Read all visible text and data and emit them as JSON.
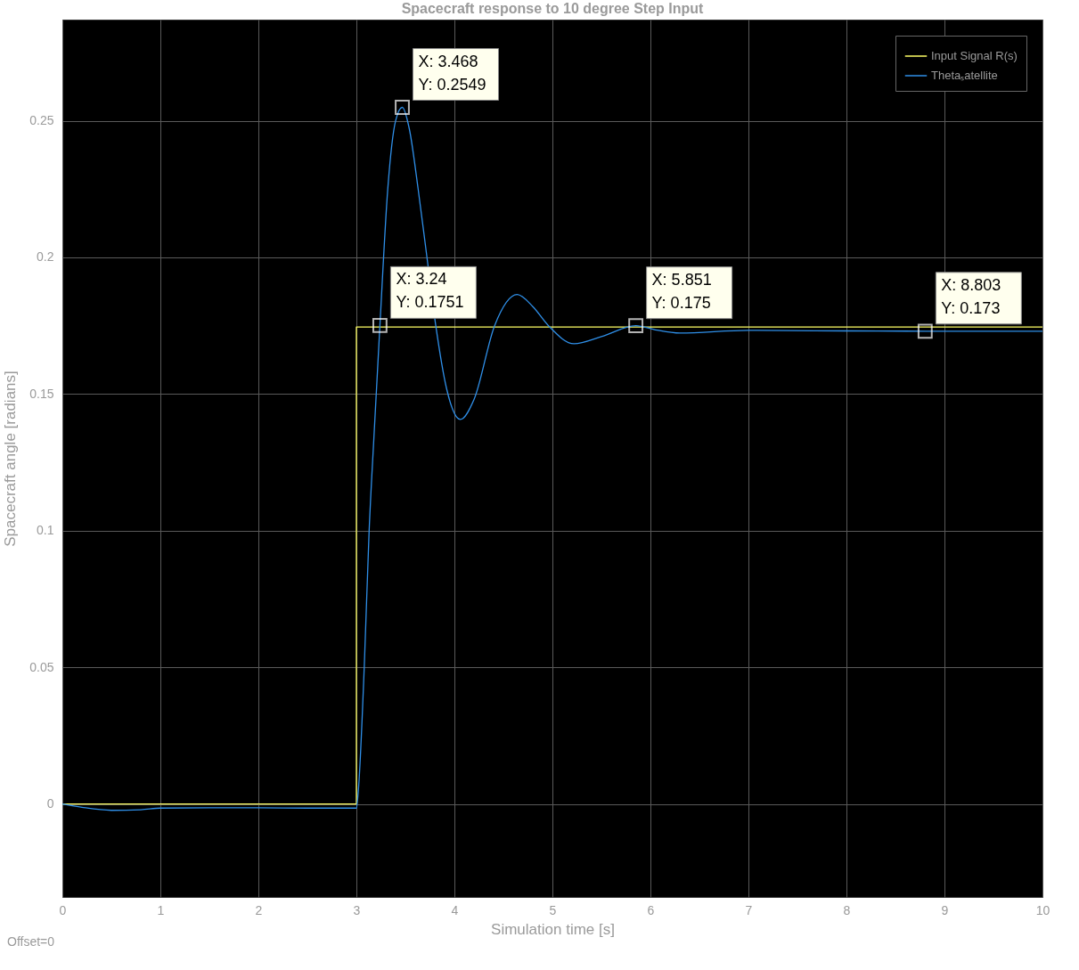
{
  "chart_data": {
    "type": "line",
    "title": "Spacecraft response to 10 degree Step Input",
    "xlabel": "Simulation time [s]",
    "ylabel": "Spacecraft angle [radians]",
    "xlim": [
      0,
      10
    ],
    "xticks": [
      0,
      1,
      2,
      3,
      4,
      5,
      6,
      7,
      8,
      9,
      10
    ],
    "ylim": [
      -0.034,
      0.287
    ],
    "yticks": [
      0,
      0.05,
      0.1,
      0.15,
      0.2,
      0.25
    ],
    "grid": true,
    "legend": "top right",
    "marker": "none",
    "line_style": "solid",
    "series": [
      {
        "name": "Input Signal R(s)",
        "type": "step",
        "color": "#ffff66",
        "x": [
          0,
          3,
          10
        ],
        "values": [
          0,
          0.1745,
          0.1745
        ]
      },
      {
        "name": "Thetaₛatellite",
        "color": "#2f8fe8",
        "x": [
          0,
          0.2,
          0.5,
          0.8,
          1,
          1.5,
          2,
          2.5,
          3,
          3.02,
          3.08,
          3.13,
          3.18,
          3.24,
          3.32,
          3.4,
          3.468,
          3.54,
          3.63,
          3.72,
          3.81,
          3.92,
          4.06,
          4.2,
          4.41,
          4.64,
          4.8,
          4.96,
          5.22,
          5.5,
          5.851,
          6.05,
          6.3,
          7,
          8,
          8.803,
          10
        ],
        "values": [
          0,
          -0.0012,
          -0.0023,
          -0.0021,
          -0.0015,
          -0.0014,
          -0.0014,
          -0.0015,
          -0.0015,
          0.005,
          0.05,
          0.1,
          0.135,
          0.1751,
          0.225,
          0.25,
          0.2549,
          0.247,
          0.225,
          0.2,
          0.175,
          0.152,
          0.1407,
          0.148,
          0.175,
          0.1864,
          0.182,
          0.175,
          0.1684,
          0.171,
          0.175,
          0.1735,
          0.1723,
          0.1733,
          0.1731,
          0.173,
          0.173
        ]
      }
    ],
    "annotations": [
      {
        "text": "X: 3.468\nY: 0.2549",
        "x": 3.468,
        "y": 0.2549
      },
      {
        "text": "X: 3.24\nY: 0.1751",
        "x": 3.24,
        "y": 0.1751
      },
      {
        "text": "X: 5.851\nY: 0.175",
        "x": 5.851,
        "y": 0.175
      },
      {
        "text": "X: 8.803\nY: 0.173",
        "x": 8.803,
        "y": 0.173
      },
      "Offset=0"
    ]
  }
}
